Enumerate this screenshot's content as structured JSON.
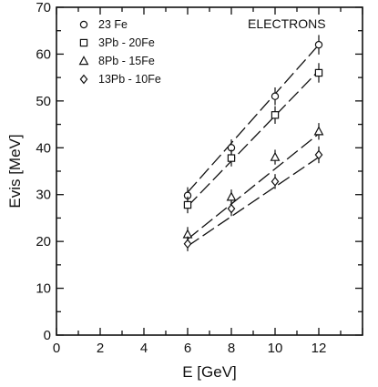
{
  "chart_data": {
    "type": "scatter",
    "title": "",
    "annotation": "ELECTRONS",
    "xlabel": "E [GeV]",
    "ylabel": "Evis [MeV]",
    "xlim": [
      0,
      14
    ],
    "ylim": [
      0,
      70
    ],
    "xticks": [
      0,
      2,
      4,
      6,
      8,
      10,
      12
    ],
    "yticks": [
      0,
      10,
      20,
      30,
      40,
      50,
      60,
      70
    ],
    "grid": false,
    "legend": "top-left",
    "series": [
      {
        "name": "23 Fe",
        "marker": "circle",
        "x": [
          6,
          8,
          10,
          12
        ],
        "y": [
          29.8,
          40.0,
          51.0,
          62.0
        ],
        "err": [
          1.2,
          1.2,
          1.3,
          1.5
        ]
      },
      {
        "name": "3Pb - 20Fe",
        "marker": "square",
        "x": [
          6,
          8,
          10,
          12
        ],
        "y": [
          27.8,
          37.8,
          47.0,
          56.0
        ],
        "err": [
          1.2,
          1.2,
          1.3,
          1.5
        ]
      },
      {
        "name": "8Pb - 15Fe",
        "marker": "triangle",
        "x": [
          6,
          8,
          10,
          12
        ],
        "y": [
          21.5,
          29.5,
          38.0,
          43.5
        ],
        "err": [
          1.0,
          1.0,
          1.0,
          1.2
        ]
      },
      {
        "name": "13Pb - 10Fe",
        "marker": "diamond",
        "x": [
          6,
          8,
          10,
          12
        ],
        "y": [
          19.5,
          27.0,
          32.8,
          38.5
        ],
        "err": [
          1.0,
          1.0,
          1.0,
          1.2
        ]
      }
    ],
    "fit_lines": [
      {
        "x": [
          6,
          12
        ],
        "y": [
          30.5,
          62.0
        ]
      },
      {
        "x": [
          6,
          12
        ],
        "y": [
          27.5,
          56.5
        ]
      },
      {
        "x": [
          6,
          12
        ],
        "y": [
          20.5,
          43.0
        ]
      },
      {
        "x": [
          6,
          12
        ],
        "y": [
          19.0,
          38.0
        ]
      }
    ]
  }
}
